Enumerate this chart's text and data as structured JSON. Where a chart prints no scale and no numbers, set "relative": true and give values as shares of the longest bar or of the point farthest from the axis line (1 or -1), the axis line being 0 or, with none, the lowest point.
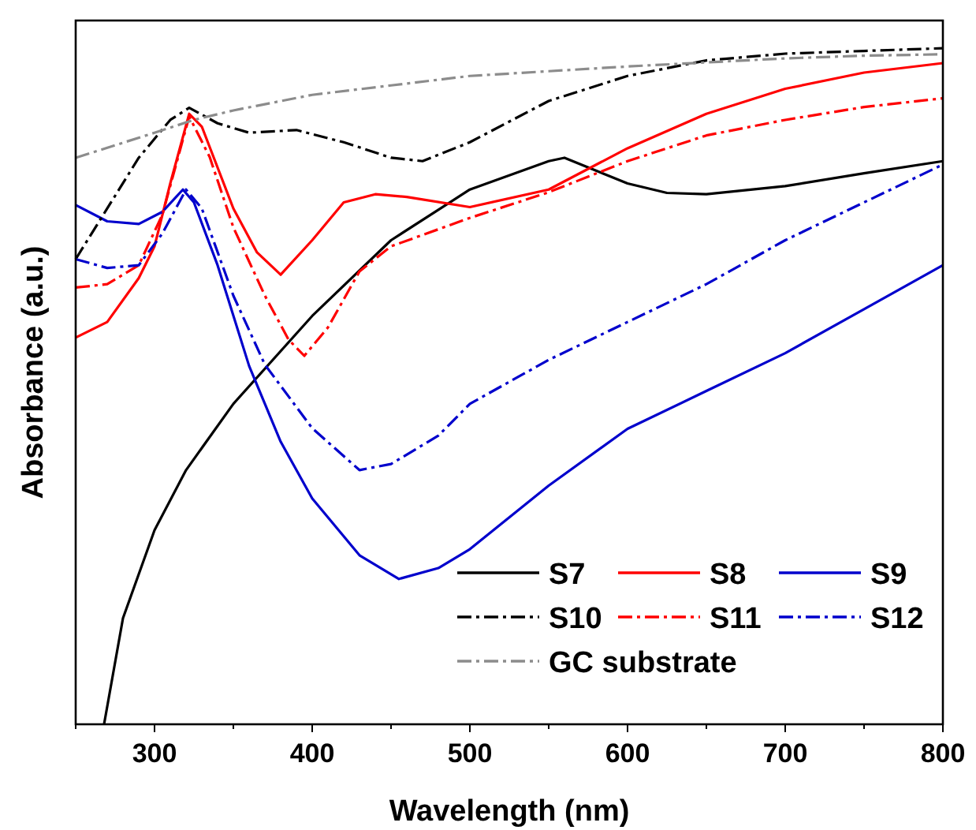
{
  "chart_data": {
    "type": "line",
    "xlabel": "Wavelength (nm)",
    "ylabel": "Absorbance (a.u.)",
    "relative": true,
    "xlim": [
      250,
      800
    ],
    "xticks": [
      {
        "value": 250,
        "label": null
      },
      300,
      {
        "value": 350,
        "label": null
      },
      400,
      {
        "value": 450,
        "label": null
      },
      500,
      {
        "value": 550,
        "label": null
      },
      600,
      {
        "value": 650,
        "label": null
      },
      700,
      {
        "value": 750,
        "label": null
      },
      800
    ],
    "legend": "bottom right",
    "grid": false,
    "tick_labels": "x",
    "series": [
      {
        "name": "S7",
        "color": "#000000",
        "line_style": "solid",
        "x": [
          268,
          280,
          300,
          320,
          350,
          400,
          450,
          500,
          550,
          560,
          600,
          625,
          650,
          700,
          750,
          800
        ],
        "values": [
          0,
          0.157,
          0.287,
          0.376,
          0.474,
          0.604,
          0.716,
          0.791,
          0.833,
          0.838,
          0.8,
          0.786,
          0.784,
          0.796,
          0.815,
          0.833
        ]
      },
      {
        "name": "S8",
        "color": "#ff0000",
        "line_style": "solid",
        "x": [
          250,
          270,
          290,
          300,
          310,
          322,
          330,
          350,
          365,
          380,
          400,
          420,
          440,
          460,
          500,
          550,
          600,
          650,
          700,
          750,
          800
        ],
        "values": [
          0.572,
          0.595,
          0.66,
          0.707,
          0.8,
          0.903,
          0.884,
          0.763,
          0.698,
          0.665,
          0.716,
          0.772,
          0.784,
          0.78,
          0.765,
          0.791,
          0.852,
          0.903,
          0.94,
          0.964,
          0.978
        ]
      },
      {
        "name": "S9",
        "color": "#0000cc",
        "line_style": "solid",
        "x": [
          250,
          270,
          290,
          305,
          318,
          325,
          340,
          360,
          380,
          400,
          430,
          455,
          480,
          500,
          550,
          600,
          650,
          700,
          750,
          800
        ],
        "values": [
          0.768,
          0.744,
          0.74,
          0.758,
          0.791,
          0.772,
          0.679,
          0.53,
          0.418,
          0.334,
          0.25,
          0.215,
          0.231,
          0.259,
          0.353,
          0.437,
          0.493,
          0.549,
          0.614,
          0.679
        ]
      },
      {
        "name": "S10",
        "color": "#000000",
        "line_style": "dashdot",
        "x": [
          250,
          270,
          290,
          310,
          322,
          340,
          360,
          390,
          420,
          450,
          470,
          500,
          550,
          600,
          650,
          700,
          750,
          800
        ],
        "values": [
          0.688,
          0.763,
          0.838,
          0.894,
          0.912,
          0.889,
          0.875,
          0.879,
          0.861,
          0.838,
          0.833,
          0.861,
          0.922,
          0.959,
          0.982,
          0.992,
          0.996,
          1.0
        ]
      },
      {
        "name": "S11",
        "color": "#ff0000",
        "line_style": "dashdot",
        "x": [
          250,
          270,
          290,
          305,
          322,
          335,
          350,
          370,
          385,
          395,
          410,
          430,
          450,
          500,
          550,
          600,
          650,
          700,
          750,
          800
        ],
        "values": [
          0.646,
          0.651,
          0.679,
          0.754,
          0.899,
          0.839,
          0.735,
          0.634,
          0.569,
          0.545,
          0.587,
          0.67,
          0.707,
          0.749,
          0.787,
          0.833,
          0.871,
          0.894,
          0.913,
          0.926
        ]
      },
      {
        "name": "S12",
        "color": "#0000cc",
        "line_style": "dashdot",
        "x": [
          250,
          270,
          290,
          305,
          320,
          330,
          350,
          370,
          400,
          430,
          450,
          480,
          500,
          550,
          600,
          650,
          700,
          750,
          800
        ],
        "values": [
          0.688,
          0.675,
          0.679,
          0.726,
          0.791,
          0.763,
          0.634,
          0.532,
          0.438,
          0.376,
          0.385,
          0.427,
          0.474,
          0.539,
          0.595,
          0.651,
          0.716,
          0.772,
          0.828
        ]
      },
      {
        "name": "GC substrate",
        "color": "#8c8c8c",
        "line_style": "dashdot",
        "x": [
          250,
          300,
          325,
          350,
          400,
          450,
          500,
          550,
          600,
          650,
          700,
          750,
          800
        ],
        "values": [
          0.838,
          0.875,
          0.894,
          0.908,
          0.931,
          0.945,
          0.959,
          0.966,
          0.973,
          0.979,
          0.985,
          0.989,
          0.991
        ]
      }
    ]
  }
}
